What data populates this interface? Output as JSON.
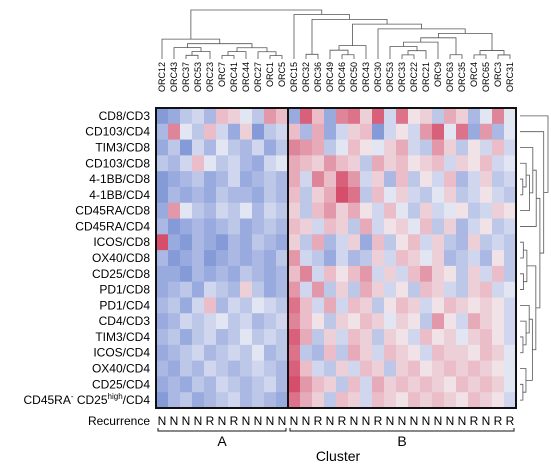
{
  "chart_data": {
    "type": "heatmap",
    "xlabel": "Cluster",
    "ylabel": "",
    "columns": [
      "ORC12",
      "ORC43",
      "ORC37",
      "ORC53",
      "ORC23",
      "ORC7",
      "ORC41",
      "ORC44",
      "ORC27",
      "ORC1",
      "ORC5",
      "ORC15",
      "ORC32",
      "ORC36",
      "ORC49",
      "ORC46",
      "ORC50",
      "ORC43",
      "ORC30",
      "ORC53",
      "ORC33",
      "ORC22",
      "ORC21",
      "ORC9",
      "ORC63",
      "ORC35",
      "ORC4",
      "ORC65",
      "ORC3",
      "ORC31"
    ],
    "rows": [
      {
        "label": "CD8/CD3"
      },
      {
        "label": "CD103/CD4"
      },
      {
        "label": "TIM3/CD8"
      },
      {
        "label": "CD103/CD8"
      },
      {
        "label": "4-1BB/CD8"
      },
      {
        "label": "4-1BB/CD4"
      },
      {
        "label": "CD45RA/CD8"
      },
      {
        "label": "CD45RA/CD4"
      },
      {
        "label": "ICOS/CD8"
      },
      {
        "label": "OX40/CD8"
      },
      {
        "label": "CD25/CD8"
      },
      {
        "label": "PD1/CD8"
      },
      {
        "label": "PD1/CD4"
      },
      {
        "label": "CD4/CD3"
      },
      {
        "label": "TIM3/CD4"
      },
      {
        "label": "ICOS/CD4"
      },
      {
        "label": "OX40/CD4"
      },
      {
        "label": "CD25/CD4"
      },
      {
        "label_main": "CD45RA",
        "label_sup1": "-",
        "label_mid": " CD25",
        "label_sup2": "high",
        "label_end": "/CD4"
      }
    ],
    "values": [
      [
        -0.6,
        -0.5,
        -0.3,
        -0.2,
        -0.4,
        0.3,
        0.2,
        -0.1,
        -0.3,
        0.5,
        0.3,
        -0.5,
        0.8,
        0.3,
        -0.5,
        0.6,
        0.7,
        0.2,
        0.8,
        -0.2,
        0.7,
        0.1,
        0.2,
        -0.3,
        0.4,
        0.2,
        -0.4,
        -0.1,
        0.6,
        -0.1
      ],
      [
        -0.4,
        0.6,
        -0.1,
        -0.3,
        0.3,
        -0.2,
        -0.5,
        0.2,
        -0.6,
        -0.3,
        -0.2,
        0.3,
        -0.4,
        0.4,
        -0.5,
        -0.2,
        0.2,
        0.3,
        -0.6,
        -0.2,
        0.1,
        -0.2,
        0.5,
        0.8,
        -0.1,
        0.7,
        -0.5,
        0.5,
        -0.4,
        -0.1
      ],
      [
        -0.5,
        -0.3,
        -0.6,
        -0.2,
        -0.4,
        -0.1,
        -0.3,
        -0.4,
        -0.2,
        -0.5,
        -0.3,
        0.6,
        0.5,
        0.4,
        -0.3,
        -0.1,
        0.3,
        0.1,
        -0.1,
        0.2,
        0.4,
        -0.2,
        -0.3,
        0.5,
        0.2,
        -0.3,
        0.1,
        -0.2,
        0.3,
        -0.2
      ],
      [
        -0.3,
        -0.4,
        -0.2,
        0.3,
        -0.1,
        -0.3,
        -0.2,
        -0.4,
        -0.5,
        -0.2,
        -0.1,
        0.4,
        0.3,
        0.2,
        0.5,
        0.3,
        0.2,
        -0.3,
        0.4,
        0.2,
        0.3,
        0.1,
        0.2,
        0.3,
        -0.2,
        0.2,
        0.1,
        0.3,
        -0.2,
        -0.1
      ],
      [
        -0.6,
        -0.5,
        -0.4,
        -0.3,
        -0.5,
        -0.4,
        -0.2,
        -0.5,
        -0.4,
        -0.3,
        -0.4,
        0.4,
        -0.2,
        0.6,
        0.3,
        0.8,
        0.5,
        -0.2,
        0.2,
        -0.4,
        0.3,
        -0.3,
        0.1,
        -0.2,
        0.3,
        -0.4,
        -0.2,
        0.2,
        -0.3,
        -0.2
      ],
      [
        -0.6,
        -0.4,
        -0.5,
        -0.4,
        -0.5,
        -0.3,
        -0.4,
        -0.4,
        -0.5,
        -0.3,
        -0.4,
        0.3,
        -0.3,
        0.2,
        0.4,
        0.9,
        0.7,
        -0.3,
        0.3,
        -0.1,
        0.2,
        -0.2,
        -0.3,
        -0.1,
        0.2,
        -0.3,
        -0.2,
        0.1,
        -0.2,
        -0.3
      ],
      [
        -0.5,
        0.5,
        -0.1,
        -0.3,
        -0.4,
        -0.2,
        -0.3,
        -0.1,
        -0.4,
        -0.2,
        -0.3,
        0.2,
        -0.3,
        0.3,
        0.5,
        0.2,
        0.4,
        0.1,
        -0.2,
        0.3,
        -0.1,
        -0.3,
        0.2,
        -0.2,
        -0.1,
        0.1,
        -0.3,
        -0.2,
        0.2,
        0.1
      ],
      [
        -0.4,
        -0.6,
        -0.5,
        -0.4,
        -0.5,
        -0.4,
        -0.3,
        -0.5,
        -0.4,
        -0.3,
        -0.4,
        0.3,
        0.2,
        -0.2,
        0.3,
        0.2,
        -0.3,
        0.4,
        -0.2,
        0.1,
        0.2,
        -0.1,
        0.3,
        -0.3,
        0.2,
        -0.4,
        -0.2,
        0.1,
        -0.3,
        -0.2
      ],
      [
        0.9,
        -0.5,
        -0.6,
        -0.4,
        -0.5,
        -0.6,
        -0.4,
        -0.5,
        -0.3,
        -0.4,
        -0.5,
        0.2,
        -0.3,
        0.4,
        -0.4,
        -0.2,
        0.2,
        -0.5,
        0.3,
        -0.3,
        0.1,
        0.3,
        -0.2,
        0.2,
        -0.3,
        -0.4,
        0.2,
        -0.3,
        -0.2,
        -0.3
      ],
      [
        -0.4,
        -0.6,
        -0.5,
        -0.4,
        -0.6,
        -0.5,
        -0.4,
        -0.5,
        -0.4,
        -0.5,
        -0.3,
        0.5,
        -0.2,
        -0.3,
        -0.5,
        -0.2,
        -0.4,
        -0.3,
        0.2,
        -0.2,
        0.3,
        0.2,
        -0.1,
        0.2,
        -0.4,
        -0.3,
        -0.2,
        -0.4,
        0.1,
        -0.3
      ],
      [
        -0.5,
        -0.5,
        -0.6,
        -0.4,
        -0.5,
        -0.4,
        -0.5,
        -0.3,
        -0.4,
        -0.5,
        -0.4,
        0.3,
        0.6,
        -0.2,
        0.3,
        0.1,
        0.3,
        0.5,
        -0.2,
        0.2,
        -0.2,
        0.3,
        0.5,
        0.2,
        0.1,
        -0.3,
        0.2,
        -0.2,
        0.3,
        -0.3
      ],
      [
        -0.5,
        -0.4,
        -0.3,
        -0.5,
        -0.2,
        -0.3,
        -0.4,
        0.2,
        -0.3,
        -0.5,
        -0.4,
        0.5,
        -0.2,
        0.5,
        -0.3,
        0.2,
        -0.3,
        0.4,
        0.2,
        -0.2,
        0.1,
        -0.3,
        0.3,
        0.2,
        -0.2,
        -0.3,
        0.2,
        0.3,
        -0.2,
        -0.1
      ],
      [
        -0.4,
        -0.3,
        -0.5,
        -0.2,
        0.3,
        -0.4,
        -0.2,
        -0.3,
        -0.1,
        -0.2,
        -0.3,
        0.7,
        0.3,
        -0.2,
        0.4,
        -0.2,
        0.3,
        0.2,
        -0.3,
        0.1,
        0.3,
        0.2,
        -0.2,
        0.1,
        0.3,
        0.2,
        0.1,
        0.2,
        0.1,
        -0.2
      ],
      [
        -0.5,
        -0.4,
        -0.2,
        -0.3,
        -0.2,
        -0.1,
        -0.3,
        -0.2,
        -0.4,
        -0.3,
        -0.2,
        0.6,
        0.3,
        0.1,
        -0.3,
        0.2,
        0.1,
        0.3,
        0.2,
        -0.1,
        0.2,
        0.1,
        -0.3,
        0.5,
        0.1,
        -0.2,
        0.4,
        0.2,
        0.1,
        -0.2
      ],
      [
        -0.4,
        -0.3,
        -0.5,
        -0.3,
        -0.2,
        -0.4,
        -0.3,
        -0.1,
        -0.3,
        -0.2,
        -0.3,
        0.8,
        0.4,
        -0.3,
        0.2,
        -0.2,
        0.3,
        0.2,
        -0.3,
        0.2,
        0.1,
        -0.2,
        0.3,
        0.1,
        0.2,
        -0.1,
        0.2,
        0.3,
        0.1,
        -0.2
      ],
      [
        -0.5,
        -0.4,
        -0.3,
        -0.2,
        -0.4,
        -0.3,
        -0.2,
        -0.3,
        -0.1,
        -0.4,
        -0.3,
        0.7,
        -0.3,
        -0.4,
        0.3,
        -0.3,
        0.4,
        0.2,
        -0.2,
        0.3,
        0.2,
        0.1,
        -0.2,
        0.3,
        0.2,
        0.2,
        0.1,
        0.3,
        0.2,
        -0.1
      ],
      [
        -0.4,
        -0.5,
        -0.3,
        -0.4,
        -0.2,
        -0.3,
        -0.4,
        -0.3,
        -0.2,
        -0.3,
        -0.4,
        0.8,
        0.3,
        -0.2,
        -0.3,
        0.2,
        -0.2,
        0.3,
        0.2,
        -0.3,
        0.2,
        0.3,
        0.1,
        0.2,
        0.3,
        0.2,
        0.3,
        0.2,
        0.1,
        -0.1
      ],
      [
        -0.5,
        -0.4,
        -0.5,
        -0.3,
        -0.4,
        -0.2,
        -0.3,
        -0.4,
        -0.3,
        -0.2,
        -0.4,
        0.9,
        0.5,
        0.3,
        0.2,
        -0.3,
        0.3,
        -0.2,
        0.4,
        0.2,
        0.3,
        0.2,
        0.3,
        0.2,
        0.1,
        0.3,
        0.2,
        0.3,
        0.2,
        -0.1
      ],
      [
        -0.6,
        -0.4,
        -0.3,
        -0.5,
        -0.4,
        -0.3,
        -0.2,
        -0.4,
        -0.3,
        -0.4,
        -0.5,
        0.7,
        0.4,
        0.2,
        -0.3,
        0.3,
        0.2,
        -0.2,
        0.3,
        0.2,
        0.1,
        0.3,
        0.2,
        0.3,
        0.2,
        0.1,
        0.3,
        0.2,
        0.1,
        -0.2
      ]
    ],
    "recurrence": {
      "label": "Recurrence",
      "values": [
        "N",
        "N",
        "N",
        "N",
        "R",
        "N",
        "R",
        "N",
        "N",
        "N",
        "N",
        "N",
        "N",
        "R",
        "N",
        "R",
        "N",
        "N",
        "R",
        "N",
        "N",
        "N",
        "N",
        "N",
        "N",
        "N",
        "R",
        "N",
        "R",
        "R"
      ]
    },
    "clusters": [
      {
        "name": "A",
        "span": 11
      },
      {
        "name": "B",
        "span": 19
      }
    ],
    "colors": {
      "low": "#3b5fc4",
      "mid": "#f4f4f7",
      "high": "#d13b5c"
    }
  }
}
